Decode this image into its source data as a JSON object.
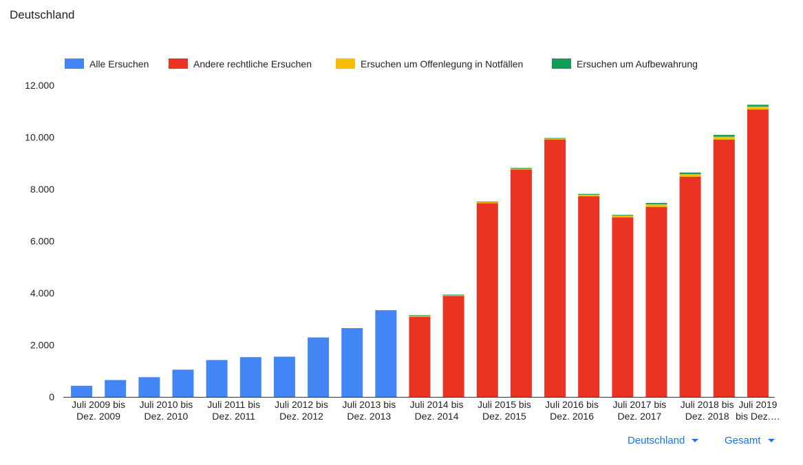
{
  "page": {
    "title": "Deutschland"
  },
  "controls": {
    "region_label": "Deutschland",
    "scope_label": "Gesamt",
    "accent_color": "#1a73e8"
  },
  "chart_data": {
    "type": "bar",
    "stacked": true,
    "y_tick_labels": [
      "0",
      "2.000",
      "4.000",
      "6.000",
      "8.000",
      "10.000",
      "12.000"
    ],
    "ylim": [
      0,
      12000
    ],
    "categories": [
      [
        "Juli 2009 bis",
        "Dez. 2009"
      ],
      [
        "Juli 2010 bis",
        "Dez. 2010"
      ],
      [
        "Juli 2011 bis",
        "Dez. 2011"
      ],
      [
        "Juli 2012 bis",
        "Dez. 2012"
      ],
      [
        "Juli 2013 bis",
        "Dez. 2013"
      ],
      [
        "Juli 2014 bis",
        "Dez. 2014"
      ],
      [
        "Juli 2015 bis",
        "Dez. 2015"
      ],
      [
        "Juli 2016 bis",
        "Dez. 2016"
      ],
      [
        "Juli 2017 bis",
        "Dez. 2017"
      ],
      [
        "Juli 2018 bis",
        "Dez. 2018"
      ],
      [
        "Juli 2019",
        "bis Dez.…"
      ]
    ],
    "bars": [
      {
        "Alle Ersuchen": 430
      },
      {
        "Alle Ersuchen": 650
      },
      {
        "Alle Ersuchen": 760
      },
      {
        "Alle Ersuchen": 1050
      },
      {
        "Alle Ersuchen": 1420
      },
      {
        "Alle Ersuchen": 1530
      },
      {
        "Alle Ersuchen": 1550
      },
      {
        "Alle Ersuchen": 2290
      },
      {
        "Alle Ersuchen": 2650
      },
      {
        "Alle Ersuchen": 3340
      },
      {
        "Andere rechtliche Ersuchen": 3090,
        "Ersuchen um Offenlegung in Notfällen": 40,
        "Ersuchen um Aufbewahrung": 20
      },
      {
        "Andere rechtliche Ersuchen": 3890,
        "Ersuchen um Offenlegung in Notfällen": 40,
        "Ersuchen um Aufbewahrung": 10
      },
      {
        "Andere rechtliche Ersuchen": 7460,
        "Ersuchen um Offenlegung in Notfällen": 50,
        "Ersuchen um Aufbewahrung": 10
      },
      {
        "Andere rechtliche Ersuchen": 8760,
        "Ersuchen um Offenlegung in Notfällen": 50,
        "Ersuchen um Aufbewahrung": 10
      },
      {
        "Andere rechtliche Ersuchen": 9910,
        "Ersuchen um Offenlegung in Notfällen": 50,
        "Ersuchen um Aufbewahrung": 10
      },
      {
        "Andere rechtliche Ersuchen": 7730,
        "Ersuchen um Offenlegung in Notfällen": 60,
        "Ersuchen um Aufbewahrung": 30
      },
      {
        "Andere rechtliche Ersuchen": 6910,
        "Ersuchen um Offenlegung in Notfällen": 70,
        "Ersuchen um Aufbewahrung": 30
      },
      {
        "Andere rechtliche Ersuchen": 7320,
        "Ersuchen um Offenlegung in Notfällen": 100,
        "Ersuchen um Aufbewahrung": 50
      },
      {
        "Andere rechtliche Ersuchen": 8480,
        "Ersuchen um Offenlegung in Notfällen": 100,
        "Ersuchen um Aufbewahrung": 60
      },
      {
        "Andere rechtliche Ersuchen": 9910,
        "Ersuchen um Offenlegung in Notfällen": 110,
        "Ersuchen um Aufbewahrung": 70
      },
      {
        "Andere rechtliche Ersuchen": 11070,
        "Ersuchen um Offenlegung in Notfällen": 110,
        "Ersuchen um Aufbewahrung": 70
      }
    ],
    "series": [
      {
        "name": "Alle Ersuchen",
        "color": "#4285f4"
      },
      {
        "name": "Andere rechtliche Ersuchen",
        "color": "#ea3323"
      },
      {
        "name": "Ersuchen um Offenlegung in Notfällen",
        "color": "#fbbc04"
      },
      {
        "name": "Ersuchen um Aufbewahrung",
        "color": "#0f9d58"
      }
    ],
    "legend_position": "top",
    "grid": false
  }
}
